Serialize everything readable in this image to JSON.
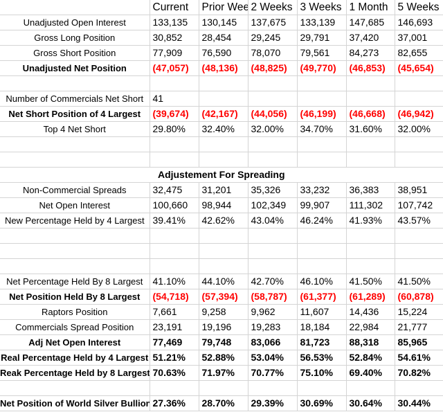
{
  "headers": [
    "",
    "Current",
    "Prior Wee",
    "2 Weeks",
    "3 Weeks",
    "1 Month",
    "5 Weeks"
  ],
  "rows": [
    {
      "kind": "data",
      "label": "Unadjusted Open Interest",
      "values": [
        "133,135",
        "130,145",
        "137,675",
        "133,139",
        "147,685",
        "146,693"
      ]
    },
    {
      "kind": "data",
      "label": "Gross Long Position",
      "values": [
        "30,852",
        "28,454",
        "29,245",
        "29,791",
        "37,420",
        "37,001"
      ]
    },
    {
      "kind": "data",
      "label": "Gross Short Position",
      "values": [
        "77,909",
        "76,590",
        "78,070",
        "79,561",
        "84,273",
        "82,655"
      ]
    },
    {
      "kind": "data",
      "bold": true,
      "red": true,
      "label": "Unadjusted Net Position",
      "values": [
        "(47,057)",
        "(48,136)",
        "(48,825)",
        "(49,770)",
        "(46,853)",
        "(45,654)"
      ]
    },
    {
      "kind": "empty"
    },
    {
      "kind": "data",
      "label": "Number of Commercials Net Short",
      "values": [
        "41",
        "",
        "",
        "",
        "",
        ""
      ]
    },
    {
      "kind": "data",
      "bold": true,
      "red": true,
      "label": "Net Short Position of 4 Largest",
      "values": [
        "(39,674)",
        "(42,167)",
        "(44,056)",
        "(46,199)",
        "(46,668)",
        "(46,942)"
      ]
    },
    {
      "kind": "data",
      "label": "Top 4 Net Short",
      "values": [
        "29.80%",
        "32.40%",
        "32.00%",
        "34.70%",
        "31.60%",
        "32.00%"
      ]
    },
    {
      "kind": "empty"
    },
    {
      "kind": "empty"
    },
    {
      "kind": "banner",
      "label": "Adjustement For Spreading"
    },
    {
      "kind": "data",
      "label": "Non-Commercial Spreads",
      "values": [
        "32,475",
        "31,201",
        "35,326",
        "33,232",
        "36,383",
        "38,951"
      ]
    },
    {
      "kind": "data",
      "label": "Net Open Interest",
      "values": [
        "100,660",
        "98,944",
        "102,349",
        "99,907",
        "111,302",
        "107,742"
      ]
    },
    {
      "kind": "data",
      "label": "New Percentage Held by 4 Largest",
      "values": [
        "39.41%",
        "42.62%",
        "43.04%",
        "46.24%",
        "41.93%",
        "43.57%"
      ]
    },
    {
      "kind": "empty"
    },
    {
      "kind": "empty"
    },
    {
      "kind": "empty"
    },
    {
      "kind": "data",
      "label": "Net Percentage Held By 8 Largest",
      "values": [
        "41.10%",
        "44.10%",
        "42.70%",
        "46.10%",
        "41.50%",
        "41.50%"
      ]
    },
    {
      "kind": "data",
      "bold": true,
      "red": true,
      "label": "Net Position Held By 8 Largest",
      "values": [
        "(54,718)",
        "(57,394)",
        "(58,787)",
        "(61,377)",
        "(61,289)",
        "(60,878)"
      ]
    },
    {
      "kind": "data",
      "label": "Raptors Position",
      "values": [
        "7,661",
        "9,258",
        "9,962",
        "11,607",
        "14,436",
        "15,224"
      ]
    },
    {
      "kind": "data",
      "label": "Commercials Spread Position",
      "values": [
        "23,191",
        "19,196",
        "19,283",
        "18,184",
        "22,984",
        "21,777"
      ]
    },
    {
      "kind": "data",
      "bold": true,
      "label": "Adj Net Open Interest",
      "values": [
        "77,469",
        "79,748",
        "83,066",
        "81,723",
        "88,318",
        "85,965"
      ]
    },
    {
      "kind": "data",
      "bold": true,
      "label": "Real Percentage Held by 4 Largest",
      "values": [
        "51.21%",
        "52.88%",
        "53.04%",
        "56.53%",
        "52.84%",
        "54.61%"
      ]
    },
    {
      "kind": "data",
      "bold": true,
      "label": "Reak Percentage Held by 8 Largest",
      "values": [
        "70.63%",
        "71.97%",
        "70.77%",
        "75.10%",
        "69.40%",
        "70.82%"
      ]
    },
    {
      "kind": "empty"
    },
    {
      "kind": "data",
      "bold": true,
      "label": "Net Position of World Silver Bullion",
      "values": [
        "27.36%",
        "28.70%",
        "29.39%",
        "30.69%",
        "30.64%",
        "30.44%"
      ]
    }
  ]
}
